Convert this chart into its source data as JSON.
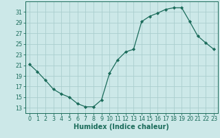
{
  "x": [
    0,
    1,
    2,
    3,
    4,
    5,
    6,
    7,
    8,
    9,
    10,
    11,
    12,
    13,
    14,
    15,
    16,
    17,
    18,
    19,
    20,
    21,
    22,
    23
  ],
  "y": [
    21.2,
    19.8,
    18.2,
    16.5,
    15.6,
    15.0,
    13.8,
    13.2,
    13.2,
    14.5,
    19.5,
    22.0,
    23.5,
    24.0,
    29.2,
    30.2,
    30.8,
    31.5,
    31.8,
    31.8,
    29.2,
    26.5,
    25.2,
    24.0
  ],
  "line_color": "#1a6b5a",
  "marker": "D",
  "marker_size": 2.2,
  "bg_color": "#cce8e8",
  "grid_color": "#aacece",
  "xlabel": "Humidex (Indice chaleur)",
  "ylim": [
    12,
    33
  ],
  "xlim": [
    -0.5,
    23.5
  ],
  "yticks": [
    13,
    15,
    17,
    19,
    21,
    23,
    25,
    27,
    29,
    31
  ],
  "xticks": [
    0,
    1,
    2,
    3,
    4,
    5,
    6,
    7,
    8,
    9,
    10,
    11,
    12,
    13,
    14,
    15,
    16,
    17,
    18,
    19,
    20,
    21,
    22,
    23
  ],
  "tick_fontsize": 5.8,
  "xlabel_fontsize": 7.0,
  "axis_color": "#1a6b5a",
  "line_width": 0.9
}
